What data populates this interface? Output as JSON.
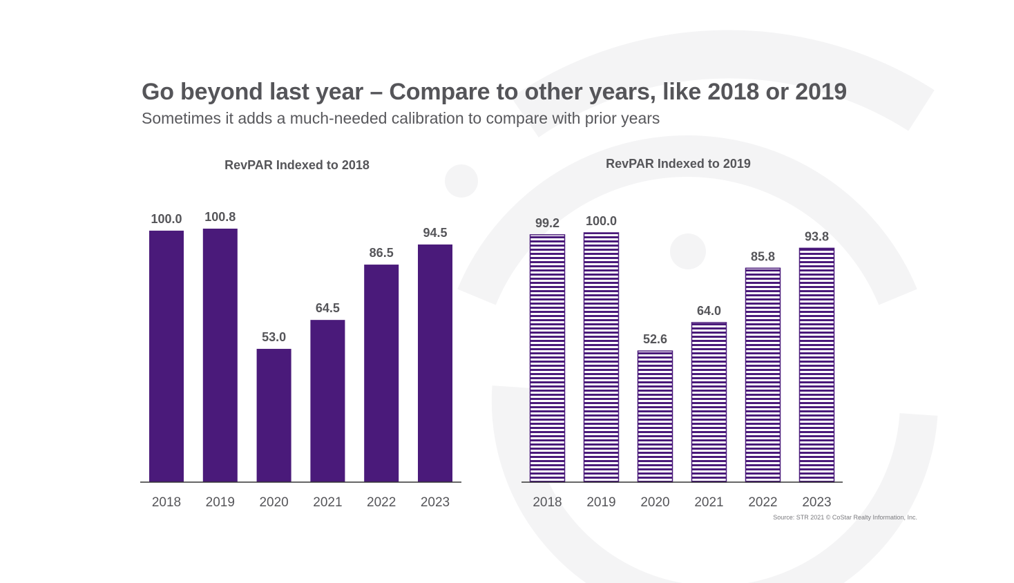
{
  "slide": {
    "title": "Go beyond last year – Compare to other years, like 2018 or 2019",
    "subtitle": "Sometimes it adds a much-needed calibration to compare with prior years",
    "source": "Source: STR 2021 © CoStar Realty Information, Inc."
  },
  "colors": {
    "bar_fill": "#4a1a7a",
    "text": "#555559",
    "axis": "#333333",
    "watermark": "#f4f4f5"
  },
  "chart_data": [
    {
      "type": "bar",
      "title": "RevPAR Indexed to 2018",
      "categories": [
        "2018",
        "2019",
        "2020",
        "2021",
        "2022",
        "2023"
      ],
      "values": [
        100.0,
        100.8,
        53.0,
        64.5,
        86.5,
        94.5
      ],
      "labels": [
        "100.0",
        "100.8",
        "53.0",
        "64.5",
        "86.5",
        "94.5"
      ],
      "fill": "solid",
      "ylim": [
        0,
        100.8
      ]
    },
    {
      "type": "bar",
      "title": "RevPAR Indexed to 2019",
      "categories": [
        "2018",
        "2019",
        "2020",
        "2021",
        "2022",
        "2023"
      ],
      "values": [
        99.2,
        100.0,
        52.6,
        64.0,
        85.8,
        93.8
      ],
      "labels": [
        "99.2",
        "100.0",
        "52.6",
        "64.0",
        "85.8",
        "93.8"
      ],
      "fill": "horizontal-stripes",
      "ylim": [
        0,
        100.0
      ]
    }
  ]
}
